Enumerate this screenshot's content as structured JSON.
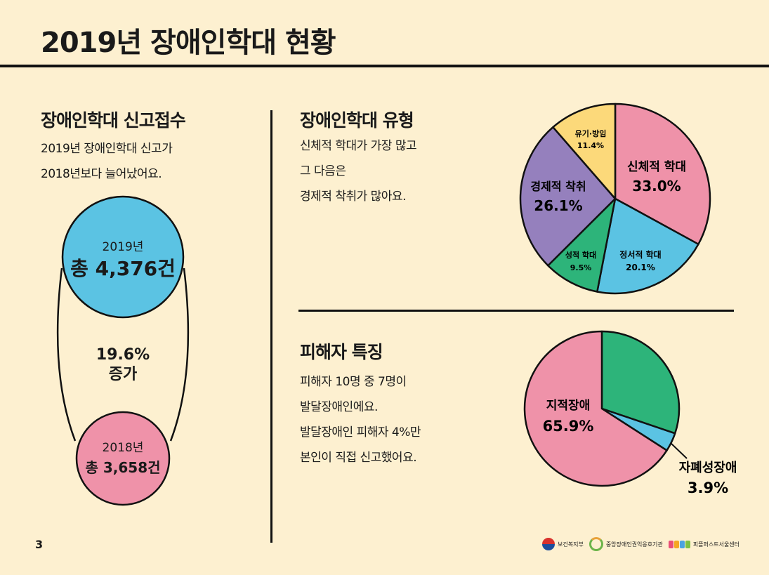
{
  "title": "2019년 장애인학대 현황",
  "page_number": "3",
  "left": {
    "heading": "장애인학대 신고접수",
    "lines": [
      "2019년 장애인학대 신고가",
      "2018년보다 늘어났어요."
    ],
    "circle_2019": {
      "year": "2019년",
      "total": "총 4,376건",
      "color": "#5bc3e3"
    },
    "increase": {
      "pct": "19.6%",
      "label": "증가"
    },
    "circle_2018": {
      "year": "2018년",
      "total": "총 3,658건",
      "color": "#ef92a9"
    }
  },
  "types": {
    "heading": "장애인학대 유형",
    "lines": [
      "신체적 학대가 가장 많고",
      "그 다음은",
      "경제적 착취가 많아요."
    ],
    "chart_data": {
      "type": "pie",
      "slices": [
        {
          "label": "신체적 학대",
          "value": 33.0,
          "value_label": "33.0%",
          "color": "#ef92a9"
        },
        {
          "label": "정서적 학대",
          "value": 20.1,
          "value_label": "20.1%",
          "color": "#5bc3e3"
        },
        {
          "label": "성적 학대",
          "value": 9.5,
          "value_label": "9.5%",
          "color": "#2db47a"
        },
        {
          "label": "경제적 착취",
          "value": 26.1,
          "value_label": "26.1%",
          "color": "#9580bd"
        },
        {
          "label": "유기·방임",
          "value": 11.4,
          "value_label": "11.4%",
          "color": "#fcd97a"
        }
      ]
    }
  },
  "victims": {
    "heading": "피해자 특징",
    "lines": [
      "피해자 10명 중 7명이",
      "발달장애인에요.",
      "발달장애인 피해자 4%만",
      "본인이 직접 신고했어요."
    ],
    "chart_data": {
      "type": "pie",
      "slices": [
        {
          "label": "",
          "value": 30.2,
          "value_label": "",
          "color": "#2db47a"
        },
        {
          "label": "자폐성장애",
          "value": 3.9,
          "value_label": "3.9%",
          "color": "#5bc3e3"
        },
        {
          "label": "지적장애",
          "value": 65.9,
          "value_label": "65.9%",
          "color": "#ef92a9"
        }
      ]
    }
  },
  "footer": {
    "logo1": "보건복지부",
    "logo2": "중앙장애인권익옹호기관",
    "logo3": "피플퍼스트서울센터"
  }
}
